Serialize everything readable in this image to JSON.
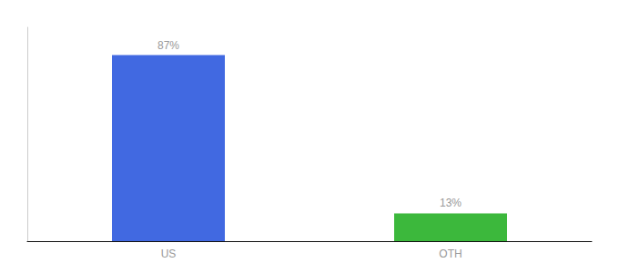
{
  "chart_data": {
    "type": "bar",
    "categories": [
      "US",
      "OTH"
    ],
    "values": [
      87,
      13
    ],
    "colors": [
      "#4169e1",
      "#3cb83c"
    ],
    "data_labels": true,
    "value_labels": [
      "87%",
      "13%"
    ],
    "ylim": [
      0,
      100
    ],
    "grid": false,
    "tick_labels": "x"
  }
}
